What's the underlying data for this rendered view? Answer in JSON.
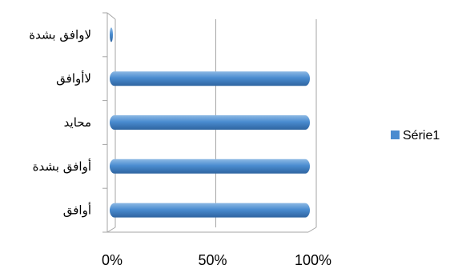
{
  "chart_data": {
    "type": "bar",
    "orientation": "horizontal",
    "categories": [
      "أوافق",
      "أوافق بشدة",
      "محايد",
      "لاأوافق",
      "لاوافق بشدة"
    ],
    "series": [
      {
        "name": "Série1",
        "values": [
          100,
          100,
          100,
          100,
          1
        ]
      }
    ],
    "x_ticks": [
      "0%",
      "50%",
      "100%"
    ],
    "xlim": [
      0,
      100
    ],
    "grid": true,
    "legend_position": "right",
    "colors": {
      "bar_top": "#8db9e4",
      "bar_mid": "#4a8cd0",
      "bar_bottom": "#2e64a0",
      "legend_swatch": "#4a8cd0",
      "grid": "#a6a6a6"
    }
  }
}
